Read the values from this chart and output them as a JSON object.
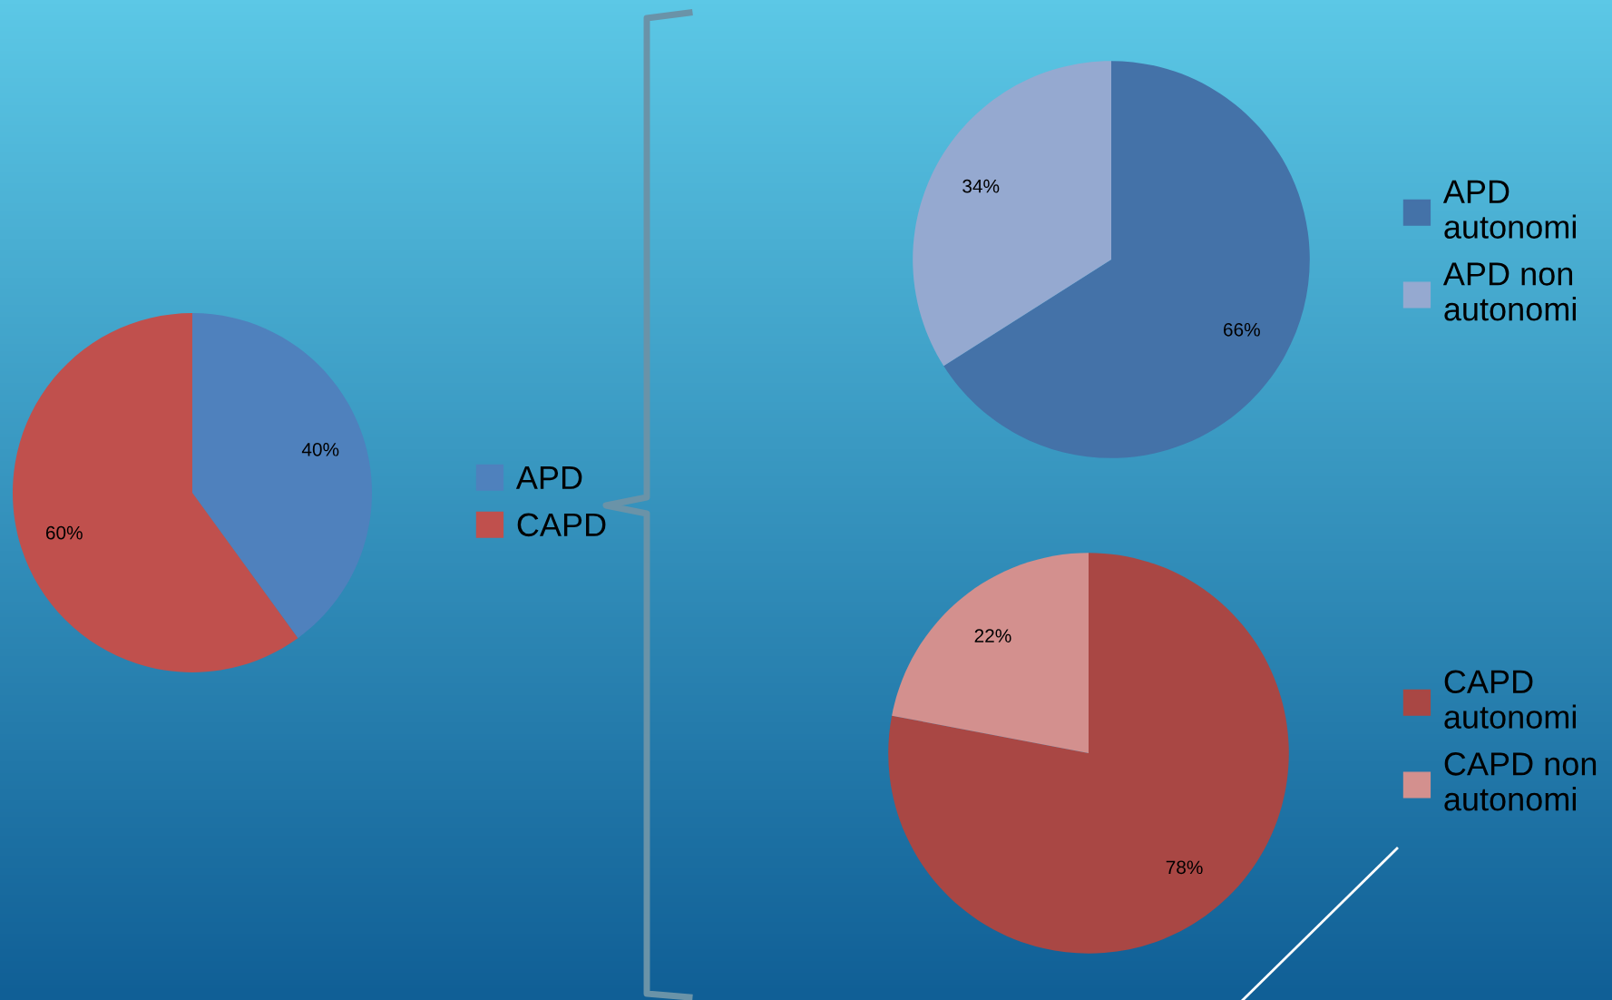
{
  "chart_data": [
    {
      "type": "pie",
      "categories": [
        "APD",
        "CAPD"
      ],
      "values": [
        40,
        60
      ],
      "value_labels": [
        "40%",
        "60%"
      ],
      "colors": [
        "#4f81bd",
        "#c0504d"
      ],
      "data_labels": true,
      "legend": "right"
    },
    {
      "type": "pie",
      "categories": [
        "APD autonomi",
        "APD non autonomi"
      ],
      "values": [
        66,
        34
      ],
      "value_labels": [
        "66%",
        "34%"
      ],
      "colors": [
        "#4472a8",
        "#95a9d0"
      ],
      "data_labels": true,
      "legend": "right"
    },
    {
      "type": "pie",
      "categories": [
        "CAPD autonomi",
        "CAPD non autonomi"
      ],
      "values": [
        78,
        22
      ],
      "value_labels": [
        "78%",
        "22%"
      ],
      "colors": [
        "#a94744",
        "#d3908e"
      ],
      "data_labels": true,
      "legend": "right"
    }
  ]
}
